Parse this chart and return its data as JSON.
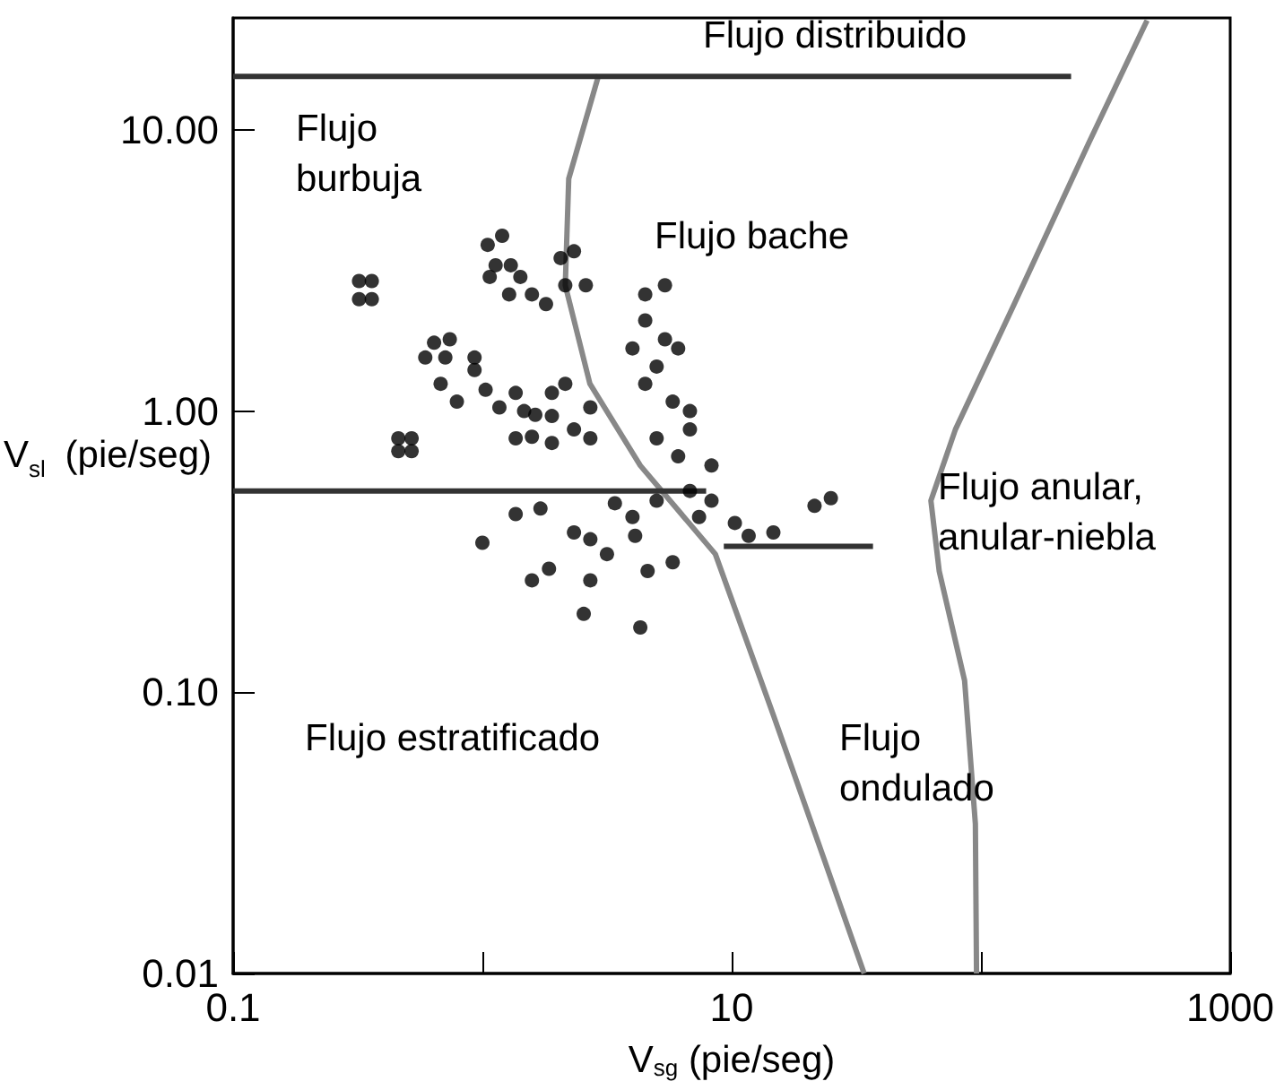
{
  "chart_data": {
    "type": "scatter",
    "xlabel": "V$_{sg}$ (pie/seg)",
    "ylabel": "V$_{sl}$ (pie/seg)",
    "log": "xy",
    "xlim": [
      0.1,
      1000
    ],
    "ylim": [
      0.01,
      25
    ],
    "xticks": [
      0.1,
      {
        "value": 1,
        "label": null
      },
      10,
      {
        "value": 100,
        "label": null
      },
      1000
    ],
    "yticks": [
      0.01,
      {
        "value": 0.1,
        "label": "0.10"
      },
      {
        "value": 1,
        "label": "1.00"
      },
      {
        "value": 10,
        "label": "10.00"
      }
    ],
    "grid": false,
    "annotations": [
      "Flujo distribuido",
      "Flujo burbuja",
      "Flujo bache",
      "Flujo anular, anular-niebla",
      "Flujo estratificado",
      "Flujo ondulado"
    ],
    "series": [
      {
        "marker": "circle",
        "color": "#000000",
        "x": [
          0.32,
          0.36,
          0.32,
          0.36,
          0.46,
          0.52,
          0.46,
          0.52,
          1.05,
          1.2,
          1.13,
          1.3,
          1.42,
          1.07,
          1.28,
          1.58,
          1.8,
          0.64,
          0.74,
          0.59,
          0.71,
          0.93,
          0.68,
          0.93,
          0.79,
          1.03,
          1.17,
          1.36,
          1.47,
          1.63,
          1.9,
          2.15,
          1.9,
          2.33,
          2.71,
          1.36,
          1.58,
          1.9,
          2.71,
          2.06,
          2.33,
          2.6,
          2.15,
          4.5,
          5.4,
          4.5,
          4.0,
          5.4,
          6.1,
          5.0,
          4.5,
          5.8,
          6.8,
          5.0,
          6.1,
          6.8,
          8.3,
          6.8,
          8.3,
          7.4,
          10.3,
          11.7,
          14.7,
          21.5,
          25,
          1.0,
          1.36,
          1.71,
          2.33,
          2.71,
          3.4,
          4.0,
          5.0,
          4.1,
          3.16,
          1.85,
          1.58,
          2.71,
          4.6,
          5.8,
          2.55,
          4.3
        ],
        "values": [
          2.9,
          2.9,
          2.5,
          2.5,
          0.8,
          0.8,
          0.72,
          0.72,
          3.9,
          4.2,
          3.3,
          3.3,
          3.0,
          3.0,
          2.6,
          2.6,
          2.4,
          1.75,
          1.8,
          1.55,
          1.55,
          1.55,
          1.25,
          1.4,
          1.08,
          1.19,
          1.03,
          1.16,
          1.0,
          0.97,
          1.16,
          1.25,
          0.96,
          0.86,
          1.03,
          0.8,
          0.81,
          0.77,
          0.8,
          3.5,
          3.7,
          2.8,
          2.8,
          2.6,
          2.8,
          2.1,
          1.67,
          1.8,
          1.67,
          1.44,
          1.25,
          1.08,
          1.0,
          0.8,
          0.69,
          0.86,
          0.64,
          0.52,
          0.48,
          0.42,
          0.4,
          0.36,
          0.37,
          0.46,
          0.49,
          0.34,
          0.43,
          0.45,
          0.37,
          0.35,
          0.47,
          0.42,
          0.48,
          0.36,
          0.31,
          0.275,
          0.25,
          0.25,
          0.27,
          0.29,
          0.19,
          0.17
        ]
      },
      {
        "type": "line",
        "color": "#888888",
        "x": [
          2.93,
          2.22,
          2.15,
          2.7,
          4.3,
          8.6,
          14.7,
          23.3,
          34
        ],
        "values": [
          15.7,
          6.7,
          2.8,
          1.25,
          0.64,
          0.31,
          0.083,
          0.026,
          0.01
        ]
      },
      {
        "type": "line",
        "color": "#888888",
        "x": [
          464,
          271,
          136,
          79,
          63,
          68,
          86,
          95,
          96
        ],
        "values": [
          24.5,
          9.0,
          2.4,
          0.86,
          0.48,
          0.27,
          0.11,
          0.034,
          0.01
        ]
      },
      {
        "type": "line",
        "color": "#333333",
        "x": [
          0.1,
          230
        ],
        "values": [
          15.5,
          15.5
        ]
      },
      {
        "type": "line",
        "color": "#333333",
        "x": [
          0.1,
          7.9
        ],
        "values": [
          0.52,
          0.52
        ]
      },
      {
        "type": "line",
        "color": "#333333",
        "x": [
          9.3,
          36.9
        ],
        "values": [
          0.33,
          0.33
        ]
      }
    ]
  }
}
